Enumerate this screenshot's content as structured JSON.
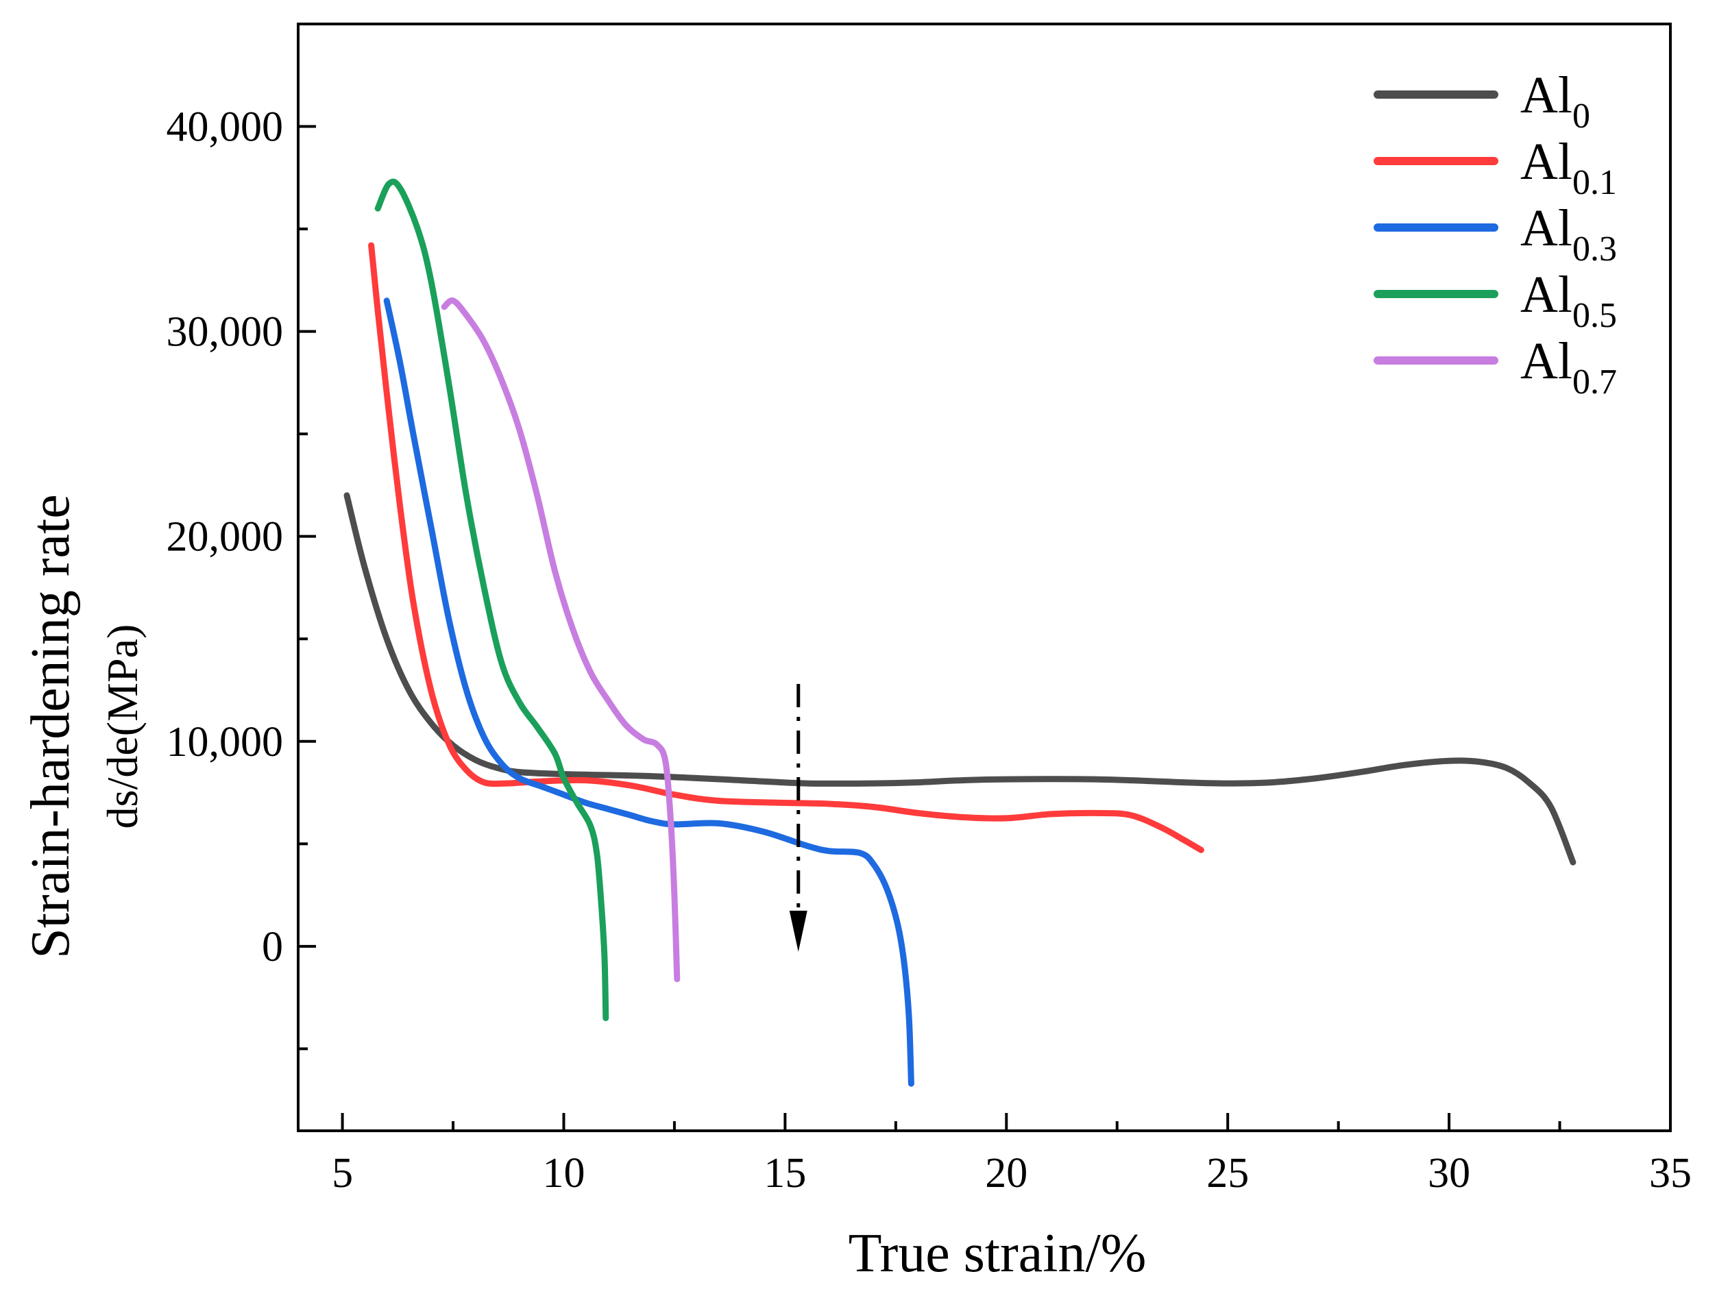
{
  "chart_data": {
    "type": "line",
    "title": "",
    "xlabel": "True strain/%",
    "ylabel": "Strain-hardening rate",
    "ylabel_line2": "ds/de(MPa)",
    "xlim": [
      4,
      35
    ],
    "ylim": [
      -9000,
      45000
    ],
    "x_ticks": [
      5,
      10,
      15,
      20,
      25,
      30,
      35
    ],
    "x_tick_labels": [
      "5",
      "10",
      "15",
      "20",
      "25",
      "30",
      "35"
    ],
    "y_ticks": [
      0,
      10000,
      20000,
      30000,
      40000
    ],
    "y_tick_labels": [
      "0",
      "10,000",
      "20,000",
      "30,000",
      "40,000"
    ],
    "grid": false,
    "legend_position": "top-right",
    "series": [
      {
        "name_base": "Al",
        "name_sub": "0",
        "color": "#4d4d4d",
        "points": [
          [
            5.1,
            22000
          ],
          [
            5.5,
            18500
          ],
          [
            6.0,
            15000
          ],
          [
            6.5,
            12500
          ],
          [
            7.0,
            10900
          ],
          [
            7.5,
            9800
          ],
          [
            8.0,
            9100
          ],
          [
            8.5,
            8700
          ],
          [
            9.0,
            8500
          ],
          [
            10.0,
            8400
          ],
          [
            12.0,
            8300
          ],
          [
            14.0,
            8100
          ],
          [
            15.5,
            7950
          ],
          [
            17.0,
            7950
          ],
          [
            18.0,
            8000
          ],
          [
            19.0,
            8100
          ],
          [
            20.0,
            8150
          ],
          [
            22.0,
            8150
          ],
          [
            24.0,
            8000
          ],
          [
            25.0,
            7950
          ],
          [
            26.0,
            8000
          ],
          [
            27.0,
            8200
          ],
          [
            28.0,
            8500
          ],
          [
            29.0,
            8850
          ],
          [
            30.0,
            9050
          ],
          [
            30.7,
            9000
          ],
          [
            31.3,
            8700
          ],
          [
            31.8,
            8000
          ],
          [
            32.3,
            6800
          ],
          [
            32.8,
            4100
          ]
        ]
      },
      {
        "name_base": "Al",
        "name_sub": "0.1",
        "color": "#ff3b3b",
        "points": [
          [
            5.65,
            34200
          ],
          [
            5.8,
            31000
          ],
          [
            6.0,
            27000
          ],
          [
            6.3,
            21500
          ],
          [
            6.6,
            16800
          ],
          [
            7.0,
            12500
          ],
          [
            7.4,
            9900
          ],
          [
            7.8,
            8600
          ],
          [
            8.2,
            8000
          ],
          [
            8.7,
            7950
          ],
          [
            9.5,
            8050
          ],
          [
            10.5,
            8100
          ],
          [
            11.5,
            7850
          ],
          [
            12.5,
            7400
          ],
          [
            13.5,
            7100
          ],
          [
            15.0,
            7000
          ],
          [
            16.0,
            6950
          ],
          [
            17.0,
            6800
          ],
          [
            18.0,
            6500
          ],
          [
            19.0,
            6300
          ],
          [
            20.0,
            6250
          ],
          [
            21.0,
            6450
          ],
          [
            22.0,
            6500
          ],
          [
            22.8,
            6400
          ],
          [
            23.5,
            5800
          ],
          [
            24.0,
            5200
          ],
          [
            24.4,
            4700
          ]
        ]
      },
      {
        "name_base": "Al",
        "name_sub": "0.3",
        "color": "#1e6ae0",
        "points": [
          [
            6.0,
            31500
          ],
          [
            6.3,
            28500
          ],
          [
            6.6,
            25000
          ],
          [
            7.0,
            20500
          ],
          [
            7.4,
            16000
          ],
          [
            7.8,
            12500
          ],
          [
            8.2,
            10200
          ],
          [
            8.6,
            8900
          ],
          [
            9.0,
            8200
          ],
          [
            9.5,
            7800
          ],
          [
            10.0,
            7400
          ],
          [
            10.5,
            7000
          ],
          [
            11.0,
            6700
          ],
          [
            11.5,
            6400
          ],
          [
            12.0,
            6100
          ],
          [
            12.5,
            5950
          ],
          [
            13.5,
            6000
          ],
          [
            14.5,
            5600
          ],
          [
            15.5,
            4900
          ],
          [
            16.0,
            4650
          ],
          [
            16.7,
            4550
          ],
          [
            17.0,
            4000
          ],
          [
            17.3,
            2800
          ],
          [
            17.55,
            1000
          ],
          [
            17.7,
            -1000
          ],
          [
            17.8,
            -3500
          ],
          [
            17.85,
            -6700
          ]
        ]
      },
      {
        "name_base": "Al",
        "name_sub": "0.5",
        "color": "#1aa05a",
        "points": [
          [
            5.8,
            36000
          ],
          [
            6.05,
            37200
          ],
          [
            6.3,
            37000
          ],
          [
            6.7,
            35000
          ],
          [
            7.0,
            32500
          ],
          [
            7.4,
            27500
          ],
          [
            7.8,
            22000
          ],
          [
            8.2,
            17500
          ],
          [
            8.6,
            13800
          ],
          [
            9.0,
            11900
          ],
          [
            9.4,
            10700
          ],
          [
            9.8,
            9400
          ],
          [
            10.0,
            8200
          ],
          [
            10.3,
            7000
          ],
          [
            10.6,
            5900
          ],
          [
            10.75,
            4500
          ],
          [
            10.85,
            2000
          ],
          [
            10.92,
            -500
          ],
          [
            10.95,
            -3500
          ]
        ]
      },
      {
        "name_base": "Al",
        "name_sub": "0.7",
        "color": "#c77ee0",
        "points": [
          [
            7.3,
            31200
          ],
          [
            7.5,
            31500
          ],
          [
            7.8,
            30800
          ],
          [
            8.2,
            29500
          ],
          [
            8.6,
            27600
          ],
          [
            9.0,
            25200
          ],
          [
            9.4,
            22000
          ],
          [
            9.8,
            18300
          ],
          [
            10.2,
            15500
          ],
          [
            10.6,
            13400
          ],
          [
            11.0,
            12000
          ],
          [
            11.4,
            10800
          ],
          [
            11.8,
            10100
          ],
          [
            12.1,
            9850
          ],
          [
            12.3,
            9000
          ],
          [
            12.42,
            6000
          ],
          [
            12.5,
            2500
          ],
          [
            12.56,
            -1600
          ]
        ]
      }
    ],
    "annotations": [
      {
        "type": "dash-dot-arrow",
        "x": 15.3,
        "y_from": 12800,
        "y_to": -200,
        "color": "#000000"
      }
    ]
  }
}
